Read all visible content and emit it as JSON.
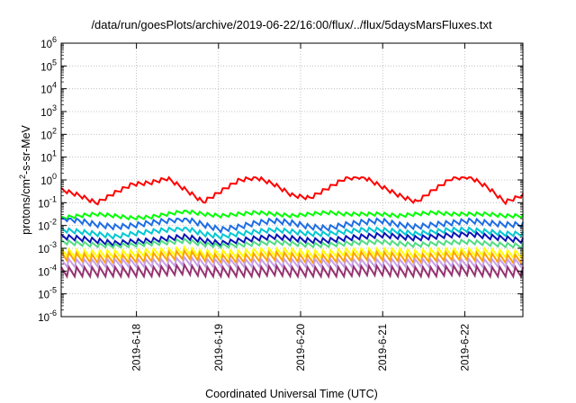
{
  "chart_data": {
    "type": "line",
    "title": "/data/run/goesPlots/archive/2019-06-22/16:00/flux/../flux/5daysMarsFluxes.txt",
    "xlabel": "Coordinated Universal Time (UTC)",
    "ylabel": "protons/cm2-s-sr-MeV",
    "ylabel_main": "protons/cm",
    "ylabel_sup": "2",
    "ylabel_rest": "-s-sr-MeV",
    "yscale": "log",
    "ylim": [
      1e-06,
      1000000.0
    ],
    "y_ticks": [
      {
        "base": "10",
        "exp": "-6"
      },
      {
        "base": "10",
        "exp": "-5"
      },
      {
        "base": "10",
        "exp": "-4"
      },
      {
        "base": "10",
        "exp": "-3"
      },
      {
        "base": "10",
        "exp": "-2"
      },
      {
        "base": "10",
        "exp": "-1"
      },
      {
        "base": "10",
        "exp": "0"
      },
      {
        "base": "10",
        "exp": "1"
      },
      {
        "base": "10",
        "exp": "2"
      },
      {
        "base": "10",
        "exp": "3"
      },
      {
        "base": "10",
        "exp": "4"
      },
      {
        "base": "10",
        "exp": "5"
      },
      {
        "base": "10",
        "exp": "6"
      }
    ],
    "xlim": [
      "2019-06-17 02:00",
      "2019-06-22 17:00"
    ],
    "x_ticks": [
      "2019-6-18",
      "2019-6-19",
      "2019-6-20",
      "2019-6-21",
      "2019-6-22"
    ],
    "grid": true,
    "legend": "none",
    "series": [
      {
        "color": "#ff0000",
        "min": 0.08,
        "max": 1.3,
        "trend": [
          0.35,
          0.2,
          0.09,
          0.25,
          0.6,
          0.7,
          1.1,
          0.35,
          0.1,
          0.3,
          0.9,
          1.2,
          0.6,
          0.2,
          0.15,
          0.4,
          1.1,
          1.3,
          0.5,
          0.2,
          0.1,
          0.35,
          1.1,
          1.3,
          0.45,
          0.1,
          0.2
        ]
      },
      {
        "color": "#00ff00",
        "min": 0.012,
        "max": 0.045,
        "trend": [
          0.02,
          0.025,
          0.03,
          0.025,
          0.02,
          0.022,
          0.03,
          0.04,
          0.03,
          0.025,
          0.03,
          0.035,
          0.03,
          0.025,
          0.03,
          0.035,
          0.03,
          0.03,
          0.03,
          0.025,
          0.03,
          0.035,
          0.03,
          0.03,
          0.03,
          0.025,
          0.025
        ]
      },
      {
        "color": "#1e6ee6",
        "min": 0.003,
        "max": 0.02,
        "trend": [
          0.02,
          0.015,
          0.01,
          0.008,
          0.009,
          0.012,
          0.015,
          0.018,
          0.01,
          0.006,
          0.008,
          0.012,
          0.015,
          0.012,
          0.008,
          0.007,
          0.01,
          0.013,
          0.015,
          0.01,
          0.008,
          0.01,
          0.012,
          0.015,
          0.012,
          0.01,
          0.01
        ]
      },
      {
        "color": "#00c8d2",
        "min": 0.0015,
        "max": 0.008,
        "trend": [
          0.006,
          0.005,
          0.004,
          0.003,
          0.004,
          0.005,
          0.006,
          0.007,
          0.004,
          0.003,
          0.004,
          0.005,
          0.006,
          0.005,
          0.004,
          0.004,
          0.005,
          0.006,
          0.006,
          0.005,
          0.004,
          0.005,
          0.006,
          0.006,
          0.005,
          0.004,
          0.004
        ]
      },
      {
        "color": "#0a14b4",
        "min": 0.0008,
        "max": 0.005,
        "trend": [
          0.003,
          0.0025,
          0.002,
          0.0015,
          0.0018,
          0.002,
          0.0025,
          0.003,
          0.002,
          0.0015,
          0.002,
          0.0025,
          0.003,
          0.0025,
          0.002,
          0.002,
          0.0025,
          0.003,
          0.0035,
          0.003,
          0.0025,
          0.003,
          0.0035,
          0.004,
          0.003,
          0.0025,
          0.002
        ]
      },
      {
        "color": "#50dc82",
        "min": 0.0006,
        "max": 0.003,
        "trend": [
          0.0018,
          0.0015,
          0.0013,
          0.0012,
          0.0013,
          0.0015,
          0.0017,
          0.002,
          0.0014,
          0.0012,
          0.0013,
          0.0015,
          0.0017,
          0.0015,
          0.0013,
          0.0013,
          0.0015,
          0.0017,
          0.0018,
          0.0015,
          0.0013,
          0.0015,
          0.0017,
          0.0018,
          0.0015,
          0.0013,
          0.0012
        ]
      },
      {
        "color": "#ffff00",
        "min": 0.0002,
        "max": 0.0012,
        "trend": [
          0.0006,
          0.0005,
          0.0005,
          0.0005,
          0.0005,
          0.0006,
          0.0006,
          0.0007,
          0.0005,
          0.0005,
          0.0005,
          0.0006,
          0.0006,
          0.0006,
          0.0005,
          0.0005,
          0.0006,
          0.0006,
          0.0006,
          0.0006,
          0.0005,
          0.0006,
          0.0006,
          0.0006,
          0.0006,
          0.0005,
          0.0005
        ]
      },
      {
        "color": "#ffa000",
        "min": 0.00012,
        "max": 0.0009,
        "trend": [
          0.0004,
          0.00035,
          0.0003,
          0.0003,
          0.0003,
          0.00035,
          0.0004,
          0.00045,
          0.00035,
          0.0003,
          0.0003,
          0.00035,
          0.0004,
          0.00035,
          0.0003,
          0.0003,
          0.00035,
          0.0004,
          0.0004,
          0.00035,
          0.0003,
          0.00035,
          0.0004,
          0.0004,
          0.00035,
          0.0003,
          0.0003
        ]
      },
      {
        "color": "#c8a0e6",
        "min": 8e-05,
        "max": 0.0005,
        "trend": [
          0.0002,
          0.0002,
          0.0002,
          0.0002,
          0.0002,
          0.0002,
          0.0002,
          0.00025,
          0.0002,
          0.0002,
          0.0002,
          0.0002,
          0.0002,
          0.0002,
          0.0002,
          0.0002,
          0.0002,
          0.0002,
          0.0002,
          0.0002,
          0.0002,
          0.0002,
          0.0002,
          0.0002,
          0.0002,
          0.0002,
          0.0002
        ]
      },
      {
        "color": "#963270",
        "min": 1.5e-05,
        "max": 0.0003,
        "trend": [
          8e-05,
          8e-05,
          8e-05,
          8e-05,
          8e-05,
          8e-05,
          9e-05,
          0.0001,
          8e-05,
          8e-05,
          8e-05,
          8e-05,
          9e-05,
          8e-05,
          8e-05,
          8e-05,
          8e-05,
          9e-05,
          9e-05,
          8e-05,
          8e-05,
          8e-05,
          9e-05,
          9e-05,
          8e-05,
          8e-05,
          8e-05
        ]
      }
    ]
  }
}
